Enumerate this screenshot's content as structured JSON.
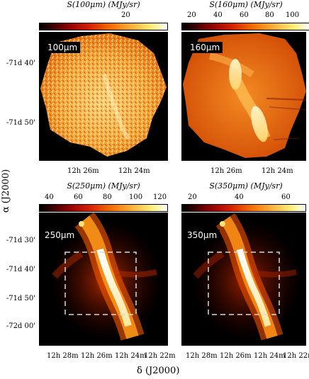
{
  "panels": {
    "p100": {
      "colorbar_title": "S(100μm)  (MJy/sr)",
      "colorbar_ticks": [
        "20"
      ],
      "label": "100μm"
    },
    "p160": {
      "colorbar_title": "S(160μm)  (MJy/sr)",
      "colorbar_ticks": [
        "20",
        "40",
        "60",
        "80",
        "100"
      ],
      "label": "160μm"
    },
    "p250": {
      "colorbar_title": "S(250μm)  (MJy/sr)",
      "colorbar_ticks": [
        "40",
        "60",
        "80",
        "100",
        "120"
      ],
      "label": "250μm"
    },
    "p350": {
      "colorbar_title": "S(350μm)  (MJy/sr)",
      "colorbar_ticks": [
        "20",
        "40",
        "60"
      ],
      "label": "350μm"
    }
  },
  "axes": {
    "top_y_ticks": [
      "-71d 40'",
      "-71d 50'"
    ],
    "top_x_ticks": [
      "12h 26m",
      "12h 24m"
    ],
    "bottom_y_ticks": [
      "-71d 30'",
      "-71d 40'",
      "-71d 50'",
      "-72d 00'"
    ],
    "bottom_x_ticks": [
      "12h 28m",
      "12h 26m",
      "12h 24m",
      "12h 22m"
    ],
    "y_title": "α (J2000)",
    "x_title": "δ (J2000)"
  },
  "colors": {
    "background": "#000000",
    "filament": "#fff4c8",
    "frame": "#000000"
  }
}
